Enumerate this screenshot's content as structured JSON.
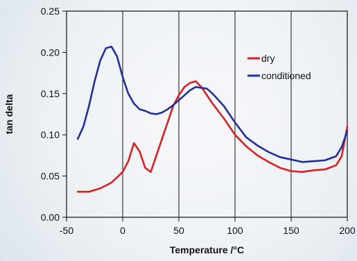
{
  "chart_data": {
    "type": "line",
    "xlabel": "Temperature /°C",
    "ylabel": "tan delta",
    "xlim": [
      -50,
      200
    ],
    "ylim": [
      0.0,
      0.25
    ],
    "x_ticks": [
      "-50",
      "0",
      "50",
      "100",
      "150",
      "200"
    ],
    "y_ticks": [
      "0.00",
      "0.05",
      "0.10",
      "0.15",
      "0.20",
      "0.25"
    ],
    "grid": "vertical",
    "legend_position": "right",
    "series": [
      {
        "name": "dry",
        "color": "#e11d1d",
        "x": [
          -40,
          -30,
          -20,
          -10,
          0,
          5,
          10,
          15,
          20,
          25,
          30,
          35,
          40,
          45,
          50,
          55,
          60,
          65,
          70,
          75,
          80,
          90,
          100,
          110,
          120,
          130,
          140,
          150,
          160,
          170,
          180,
          190,
          195,
          200
        ],
        "y": [
          0.031,
          0.031,
          0.035,
          0.042,
          0.055,
          0.068,
          0.09,
          0.08,
          0.06,
          0.055,
          0.075,
          0.095,
          0.115,
          0.135,
          0.148,
          0.158,
          0.163,
          0.165,
          0.158,
          0.148,
          0.138,
          0.12,
          0.1,
          0.086,
          0.075,
          0.067,
          0.06,
          0.056,
          0.055,
          0.057,
          0.058,
          0.063,
          0.074,
          0.11
        ]
      },
      {
        "name": "conditioned",
        "color": "#1f2fa3",
        "x": [
          -40,
          -35,
          -30,
          -25,
          -20,
          -15,
          -10,
          -5,
          0,
          5,
          10,
          15,
          20,
          25,
          30,
          35,
          40,
          45,
          50,
          55,
          60,
          65,
          70,
          75,
          80,
          90,
          100,
          110,
          120,
          130,
          140,
          150,
          160,
          170,
          180,
          190,
          195,
          200
        ],
        "y": [
          0.095,
          0.11,
          0.135,
          0.165,
          0.19,
          0.205,
          0.207,
          0.195,
          0.17,
          0.15,
          0.138,
          0.131,
          0.129,
          0.126,
          0.125,
          0.127,
          0.131,
          0.136,
          0.142,
          0.148,
          0.154,
          0.158,
          0.157,
          0.156,
          0.15,
          0.135,
          0.115,
          0.097,
          0.087,
          0.079,
          0.073,
          0.07,
          0.067,
          0.068,
          0.069,
          0.074,
          0.085,
          0.105
        ]
      }
    ]
  }
}
